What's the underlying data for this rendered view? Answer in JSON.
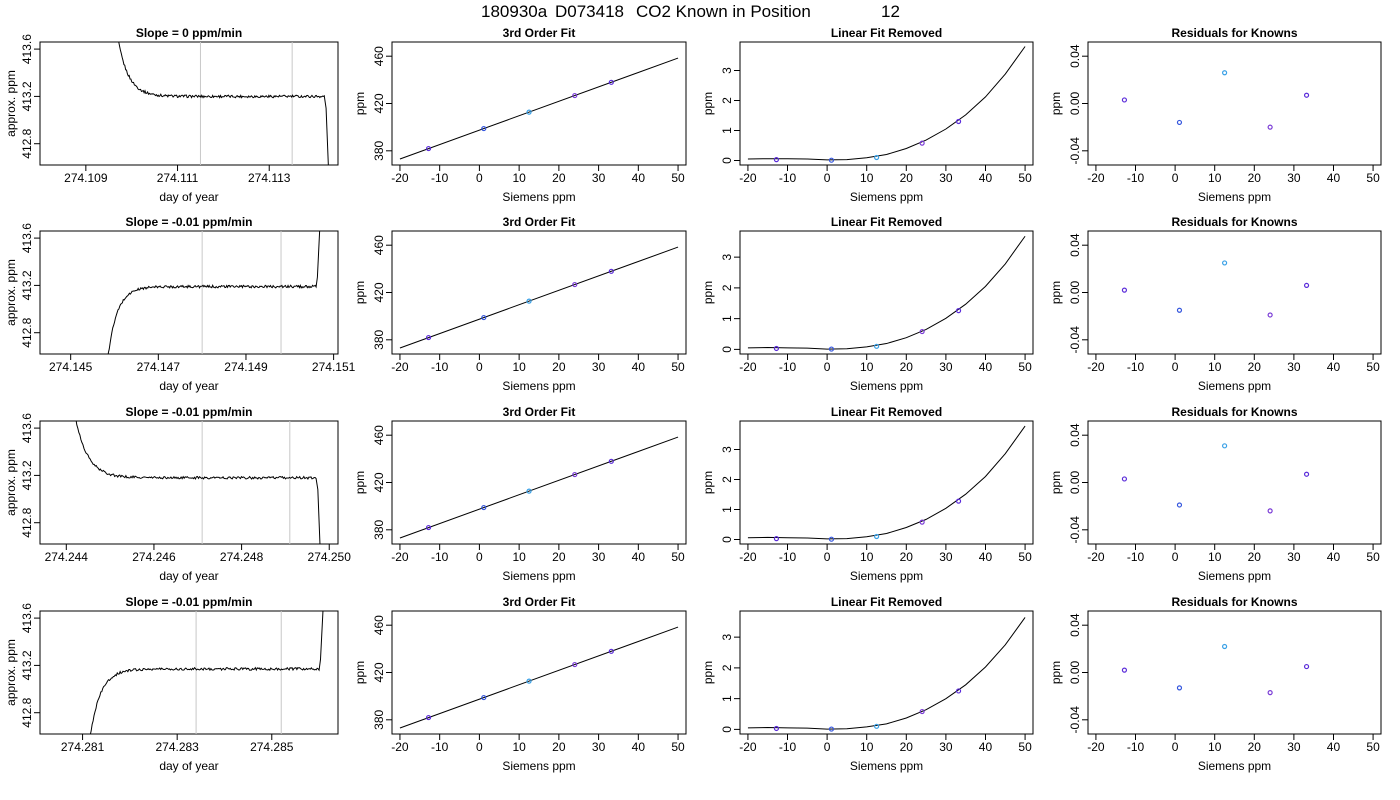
{
  "header": {
    "title_id": "180930a",
    "title_tank": "D073418",
    "title_rest": "CO2 Known in Position",
    "title_position": "12"
  },
  "chart_data": [
    {
      "row": 1,
      "trace": {
        "type": "line",
        "title": "Slope =  0  ppm/min",
        "xlabel": "day of year",
        "ylabel": "approx. ppm",
        "xlim": [
          274.108,
          274.1145
        ],
        "ylim": [
          412.62,
          413.66
        ],
        "xticks": [
          274.109,
          274.111,
          274.113
        ],
        "xtick_labels": [
          "274.109",
          "274.111",
          "274.113"
        ],
        "yticks": [
          412.8,
          413.2,
          413.6
        ],
        "ytick_labels": [
          "412.8",
          "413.2",
          "413.6"
        ],
        "vlines": [
          274.1115,
          274.1135
        ],
        "trace_start": 274.1096,
        "trace_end": 274.1142,
        "trace_level": 413.2,
        "rises_from_below": false,
        "drops_at_end": true
      },
      "fit": {
        "type": "scatter",
        "title": "3rd Order Fit",
        "xlabel": "Siemens ppm",
        "ylabel": "ppm",
        "xlim": [
          -22,
          52
        ],
        "ylim": [
          368,
          472
        ],
        "xticks": [
          -20,
          -10,
          0,
          10,
          20,
          30,
          40,
          50
        ],
        "yticks": [
          380,
          420,
          460
        ],
        "points_x": [
          -12.8,
          1.1,
          12.5,
          24.0,
          33.2
        ],
        "points_y": [
          381.9,
          398.8,
          412.7,
          426.7,
          437.9
        ],
        "line_x": [
          -20,
          50
        ],
        "line_y": [
          373.1,
          458.4
        ]
      },
      "linear_removed": {
        "type": "scatter",
        "title": "Linear Fit Removed",
        "xlabel": "Siemens ppm",
        "ylabel": "ppm",
        "xlim": [
          -22,
          52
        ],
        "ylim": [
          -0.15,
          3.95
        ],
        "xticks": [
          -20,
          -10,
          0,
          10,
          20,
          30,
          40,
          50
        ],
        "yticks": [
          0,
          1,
          2,
          3
        ],
        "points_x": [
          -12.8,
          1.1,
          12.5,
          24.0,
          33.2
        ],
        "points_y": [
          0.03,
          0.01,
          0.1,
          0.58,
          1.3
        ],
        "curve_x": [
          -20,
          -15,
          -10,
          -5,
          0,
          5,
          10,
          15,
          20,
          25,
          30,
          35,
          40,
          45,
          50
        ],
        "curve_y": [
          0.05,
          0.06,
          0.06,
          0.05,
          0.02,
          0.03,
          0.09,
          0.2,
          0.4,
          0.68,
          1.05,
          1.52,
          2.12,
          2.88,
          3.8
        ]
      },
      "residuals": {
        "type": "scatter",
        "title": "Residuals for Knowns",
        "xlabel": "Siemens ppm",
        "ylabel": "ppm",
        "xlim": [
          -22,
          52
        ],
        "ylim": [
          -0.052,
          0.052
        ],
        "xticks": [
          -20,
          -10,
          0,
          10,
          20,
          30,
          40,
          50
        ],
        "yticks": [
          -0.04,
          0.0,
          0.04
        ],
        "ytick_labels": [
          "-0.04",
          "0.00",
          "0.04"
        ],
        "points_x": [
          -12.8,
          1.1,
          12.5,
          24.0,
          33.2
        ],
        "points_y": [
          0.003,
          -0.016,
          0.026,
          -0.02,
          0.007
        ]
      }
    },
    {
      "row": 2,
      "trace": {
        "type": "line",
        "title": "Slope =  -0.01  ppm/min",
        "xlabel": "day of year",
        "ylabel": "approx. ppm",
        "xlim": [
          274.1443,
          274.1511
        ],
        "ylim": [
          412.62,
          413.66
        ],
        "xticks": [
          274.145,
          274.147,
          274.149,
          274.151
        ],
        "xtick_labels": [
          "274.145",
          "274.147",
          "274.149",
          "274.151"
        ],
        "yticks": [
          412.8,
          413.2,
          413.6
        ],
        "ytick_labels": [
          "412.8",
          "413.2",
          "413.6"
        ],
        "vlines": [
          274.148,
          274.1498
        ],
        "trace_start": 274.1458,
        "trace_end": 274.1506,
        "trace_level": 413.19,
        "rises_from_below": true,
        "drops_at_end": false
      },
      "fit": {
        "type": "scatter",
        "title": "3rd Order Fit",
        "xlabel": "Siemens ppm",
        "ylabel": "ppm",
        "xlim": [
          -22,
          52
        ],
        "ylim": [
          368,
          472
        ],
        "xticks": [
          -20,
          -10,
          0,
          10,
          20,
          30,
          40,
          50
        ],
        "yticks": [
          380,
          420,
          460
        ],
        "points_x": [
          -12.8,
          1.1,
          12.5,
          24.0,
          33.2
        ],
        "points_y": [
          381.9,
          398.8,
          412.7,
          426.7,
          437.9
        ],
        "line_x": [
          -20,
          50
        ],
        "line_y": [
          373.1,
          458.4
        ]
      },
      "linear_removed": {
        "type": "scatter",
        "title": "Linear Fit Removed",
        "xlabel": "Siemens ppm",
        "ylabel": "ppm",
        "xlim": [
          -22,
          52
        ],
        "ylim": [
          -0.15,
          3.85
        ],
        "xticks": [
          -20,
          -10,
          0,
          10,
          20,
          30,
          40,
          50
        ],
        "yticks": [
          0,
          1,
          2,
          3
        ],
        "points_x": [
          -12.8,
          1.1,
          12.5,
          24.0,
          33.2
        ],
        "points_y": [
          0.03,
          0.01,
          0.1,
          0.58,
          1.26
        ],
        "curve_x": [
          -20,
          -15,
          -10,
          -5,
          0,
          5,
          10,
          15,
          20,
          25,
          30,
          35,
          40,
          45,
          50
        ],
        "curve_y": [
          0.05,
          0.06,
          0.05,
          0.04,
          0.01,
          0.02,
          0.08,
          0.19,
          0.38,
          0.65,
          1.01,
          1.47,
          2.05,
          2.78,
          3.68
        ]
      },
      "residuals": {
        "type": "scatter",
        "title": "Residuals for Knowns",
        "xlabel": "Siemens ppm",
        "ylabel": "ppm",
        "xlim": [
          -22,
          52
        ],
        "ylim": [
          -0.052,
          0.052
        ],
        "xticks": [
          -20,
          -10,
          0,
          10,
          20,
          30,
          40,
          50
        ],
        "yticks": [
          -0.04,
          0.0,
          0.04
        ],
        "ytick_labels": [
          "-0.04",
          "0.00",
          "0.04"
        ],
        "points_x": [
          -12.8,
          1.1,
          12.5,
          24.0,
          33.2
        ],
        "points_y": [
          0.002,
          -0.015,
          0.025,
          -0.019,
          0.006
        ]
      }
    },
    {
      "row": 3,
      "trace": {
        "type": "line",
        "title": "Slope =  -0.01  ppm/min",
        "xlabel": "day of year",
        "ylabel": "approx. ppm",
        "xlim": [
          274.2434,
          274.2502
        ],
        "ylim": [
          412.62,
          413.66
        ],
        "xticks": [
          274.244,
          274.246,
          274.248,
          274.25
        ],
        "xtick_labels": [
          "274.244",
          "274.246",
          "274.248",
          "274.250"
        ],
        "yticks": [
          412.8,
          413.2,
          413.6
        ],
        "ytick_labels": [
          "412.8",
          "413.2",
          "413.6"
        ],
        "vlines": [
          274.2471,
          274.2491
        ],
        "trace_start": 274.2441,
        "trace_end": 274.2497,
        "trace_level": 413.18,
        "rises_from_below": false,
        "drops_at_end": true
      },
      "fit": {
        "type": "scatter",
        "title": "3rd Order Fit",
        "xlabel": "Siemens ppm",
        "ylabel": "ppm",
        "xlim": [
          -22,
          52
        ],
        "ylim": [
          368,
          472
        ],
        "xticks": [
          -20,
          -10,
          0,
          10,
          20,
          30,
          40,
          50
        ],
        "yticks": [
          380,
          420,
          460
        ],
        "points_x": [
          -12.8,
          1.1,
          12.5,
          24.0,
          33.2
        ],
        "points_y": [
          381.9,
          398.8,
          412.7,
          426.7,
          437.9
        ],
        "line_x": [
          -20,
          50
        ],
        "line_y": [
          373.1,
          458.4
        ]
      },
      "linear_removed": {
        "type": "scatter",
        "title": "Linear Fit Removed",
        "xlabel": "Siemens ppm",
        "ylabel": "ppm",
        "xlim": [
          -22,
          52
        ],
        "ylim": [
          -0.15,
          3.95
        ],
        "xticks": [
          -20,
          -10,
          0,
          10,
          20,
          30,
          40,
          50
        ],
        "yticks": [
          0,
          1,
          2,
          3
        ],
        "points_x": [
          -12.8,
          1.1,
          12.5,
          24.0,
          33.2
        ],
        "points_y": [
          0.03,
          0.01,
          0.1,
          0.58,
          1.28
        ],
        "curve_x": [
          -20,
          -15,
          -10,
          -5,
          0,
          5,
          10,
          15,
          20,
          25,
          30,
          35,
          40,
          45,
          50
        ],
        "curve_y": [
          0.06,
          0.07,
          0.06,
          0.05,
          0.02,
          0.03,
          0.09,
          0.2,
          0.4,
          0.67,
          1.04,
          1.51,
          2.1,
          2.86,
          3.78
        ]
      },
      "residuals": {
        "type": "scatter",
        "title": "Residuals for Knowns",
        "xlabel": "Siemens ppm",
        "ylabel": "ppm",
        "xlim": [
          -22,
          52
        ],
        "ylim": [
          -0.052,
          0.052
        ],
        "xticks": [
          -20,
          -10,
          0,
          10,
          20,
          30,
          40,
          50
        ],
        "yticks": [
          -0.04,
          0.0,
          0.04
        ],
        "ytick_labels": [
          "-0.04",
          "0.00",
          "0.04"
        ],
        "points_x": [
          -12.8,
          1.1,
          12.5,
          24.0,
          33.2
        ],
        "points_y": [
          0.003,
          -0.019,
          0.031,
          -0.024,
          0.007
        ]
      }
    },
    {
      "row": 4,
      "trace": {
        "type": "line",
        "title": "Slope =  -0.01  ppm/min",
        "xlabel": "day of year",
        "ylabel": "approx. ppm",
        "xlim": [
          274.2801,
          274.2864
        ],
        "ylim": [
          412.62,
          413.66
        ],
        "xticks": [
          274.281,
          274.283,
          274.285
        ],
        "xtick_labels": [
          "274.281",
          "274.283",
          "274.285"
        ],
        "yticks": [
          412.8,
          413.2,
          413.6
        ],
        "ytick_labels": [
          "412.8",
          "413.2",
          "413.6"
        ],
        "vlines": [
          274.2834,
          274.2852
        ],
        "trace_start": 274.2811,
        "trace_end": 274.286,
        "trace_level": 413.17,
        "rises_from_below": true,
        "drops_at_end": false
      },
      "fit": {
        "type": "scatter",
        "title": "3rd Order Fit",
        "xlabel": "Siemens ppm",
        "ylabel": "ppm",
        "xlim": [
          -22,
          52
        ],
        "ylim": [
          368,
          472
        ],
        "xticks": [
          -20,
          -10,
          0,
          10,
          20,
          30,
          40,
          50
        ],
        "yticks": [
          380,
          420,
          460
        ],
        "points_x": [
          -12.8,
          1.1,
          12.5,
          24.0,
          33.2
        ],
        "points_y": [
          381.9,
          398.8,
          412.7,
          426.7,
          437.9
        ],
        "line_x": [
          -20,
          50
        ],
        "line_y": [
          373.1,
          458.4
        ]
      },
      "linear_removed": {
        "type": "scatter",
        "title": "Linear Fit Removed",
        "xlabel": "Siemens ppm",
        "ylabel": "ppm",
        "xlim": [
          -22,
          52
        ],
        "ylim": [
          -0.15,
          3.85
        ],
        "xticks": [
          -20,
          -10,
          0,
          10,
          20,
          30,
          40,
          50
        ],
        "yticks": [
          0,
          1,
          2,
          3
        ],
        "points_x": [
          -12.8,
          1.1,
          12.5,
          24.0,
          33.2
        ],
        "points_y": [
          0.03,
          0.01,
          0.1,
          0.58,
          1.25
        ],
        "curve_x": [
          -20,
          -15,
          -10,
          -5,
          0,
          5,
          10,
          15,
          20,
          25,
          30,
          35,
          40,
          45,
          50
        ],
        "curve_y": [
          0.05,
          0.06,
          0.05,
          0.04,
          0.01,
          0.02,
          0.08,
          0.18,
          0.37,
          0.64,
          1.0,
          1.45,
          2.03,
          2.75,
          3.64
        ]
      },
      "residuals": {
        "type": "scatter",
        "title": "Residuals for Knowns",
        "xlabel": "Siemens ppm",
        "ylabel": "ppm",
        "xlim": [
          -22,
          52
        ],
        "ylim": [
          -0.052,
          0.052
        ],
        "xticks": [
          -20,
          -10,
          0,
          10,
          20,
          30,
          40,
          50
        ],
        "yticks": [
          -0.04,
          0.0,
          0.04
        ],
        "ytick_labels": [
          "-0.04",
          "0.00",
          "0.04"
        ],
        "points_x": [
          -12.8,
          1.1,
          12.5,
          24.0,
          33.2
        ],
        "points_y": [
          0.002,
          -0.013,
          0.022,
          -0.017,
          0.005
        ]
      }
    }
  ]
}
